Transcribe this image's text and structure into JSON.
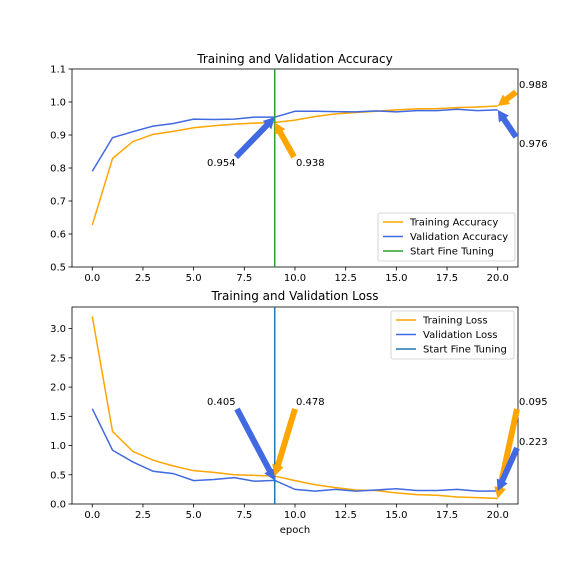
{
  "chart_data": [
    {
      "type": "line",
      "title": "Training and Validation Accuracy",
      "xlabel": "",
      "ylabel": "",
      "xlim": [
        -1,
        21
      ],
      "ylim": [
        0.5,
        1.1
      ],
      "xticks": [
        "0.0",
        "2.5",
        "5.0",
        "7.5",
        "10.0",
        "12.5",
        "15.0",
        "17.5",
        "20.0"
      ],
      "xtick_values": [
        0,
        2.5,
        5,
        7.5,
        10,
        12.5,
        15,
        17.5,
        20
      ],
      "yticks": [
        "0.5",
        "0.6",
        "0.7",
        "0.8",
        "0.9",
        "1.0",
        "1.1"
      ],
      "ytick_values": [
        0.5,
        0.6,
        0.7,
        0.8,
        0.9,
        1.0,
        1.1
      ],
      "x": [
        0,
        1,
        2,
        3,
        4,
        5,
        6,
        7,
        8,
        9,
        10,
        11,
        12,
        13,
        14,
        15,
        16,
        17,
        18,
        19,
        20
      ],
      "series": [
        {
          "name": "Training Accuracy",
          "color": "#FFA500",
          "values": [
            0.627,
            0.829,
            0.88,
            0.902,
            0.911,
            0.922,
            0.928,
            0.933,
            0.936,
            0.938,
            0.945,
            0.956,
            0.964,
            0.968,
            0.972,
            0.976,
            0.979,
            0.98,
            0.983,
            0.985,
            0.988
          ]
        },
        {
          "name": "Validation Accuracy",
          "color": "#4169E1",
          "values": [
            0.79,
            0.892,
            0.91,
            0.927,
            0.935,
            0.948,
            0.947,
            0.948,
            0.954,
            0.954,
            0.972,
            0.972,
            0.971,
            0.97,
            0.973,
            0.97,
            0.974,
            0.974,
            0.978,
            0.974,
            0.976
          ]
        }
      ],
      "vline": {
        "name": "Start Fine Tuning",
        "x": 9,
        "color": "#2CA02C"
      },
      "legend": "lower right",
      "annotations": [
        {
          "text": "0.954",
          "x": 9,
          "y": 0.954,
          "color": "#4169E1"
        },
        {
          "text": "0.938",
          "x": 9,
          "y": 0.938,
          "color": "#FFA500"
        },
        {
          "text": "0.988",
          "x": 20,
          "y": 0.988,
          "color": "#FFA500"
        },
        {
          "text": "0.976",
          "x": 20,
          "y": 0.976,
          "color": "#4169E1"
        }
      ]
    },
    {
      "type": "line",
      "title": "Training and Validation Loss",
      "xlabel": "epoch",
      "ylabel": "",
      "xlim": [
        -1,
        21
      ],
      "ylim": [
        0,
        3.37
      ],
      "xticks": [
        "0.0",
        "2.5",
        "5.0",
        "7.5",
        "10.0",
        "12.5",
        "15.0",
        "17.5",
        "20.0"
      ],
      "xtick_values": [
        0,
        2.5,
        5,
        7.5,
        10,
        12.5,
        15,
        17.5,
        20
      ],
      "yticks": [
        "0.0",
        "0.5",
        "1.0",
        "1.5",
        "2.0",
        "2.5",
        "3.0"
      ],
      "ytick_values": [
        0,
        0.5,
        1.0,
        1.5,
        2.0,
        2.5,
        3.0
      ],
      "x": [
        0,
        1,
        2,
        3,
        4,
        5,
        6,
        7,
        8,
        9,
        10,
        11,
        12,
        13,
        14,
        15,
        16,
        17,
        18,
        19,
        20
      ],
      "series": [
        {
          "name": "Training Loss",
          "color": "#FFA500",
          "values": [
            3.21,
            1.24,
            0.9,
            0.75,
            0.65,
            0.57,
            0.54,
            0.5,
            0.49,
            0.478,
            0.4,
            0.33,
            0.28,
            0.24,
            0.23,
            0.19,
            0.16,
            0.15,
            0.12,
            0.11,
            0.095
          ]
        },
        {
          "name": "Validation Loss",
          "color": "#4169E1",
          "values": [
            1.63,
            0.92,
            0.72,
            0.56,
            0.52,
            0.4,
            0.42,
            0.45,
            0.39,
            0.405,
            0.25,
            0.22,
            0.25,
            0.22,
            0.24,
            0.26,
            0.23,
            0.23,
            0.25,
            0.22,
            0.223
          ]
        }
      ],
      "vline": {
        "name": "Start Fine Tuning",
        "x": 9,
        "color": "#1F77B4"
      },
      "legend": "upper right",
      "annotations": [
        {
          "text": "0.405",
          "x": 9,
          "y": 0.405,
          "color": "#4169E1"
        },
        {
          "text": "0.478",
          "x": 9,
          "y": 0.478,
          "color": "#FFA500"
        },
        {
          "text": "0.095",
          "x": 20,
          "y": 0.095,
          "color": "#FFA500"
        },
        {
          "text": "0.223",
          "x": 20,
          "y": 0.223,
          "color": "#4169E1"
        }
      ]
    }
  ]
}
